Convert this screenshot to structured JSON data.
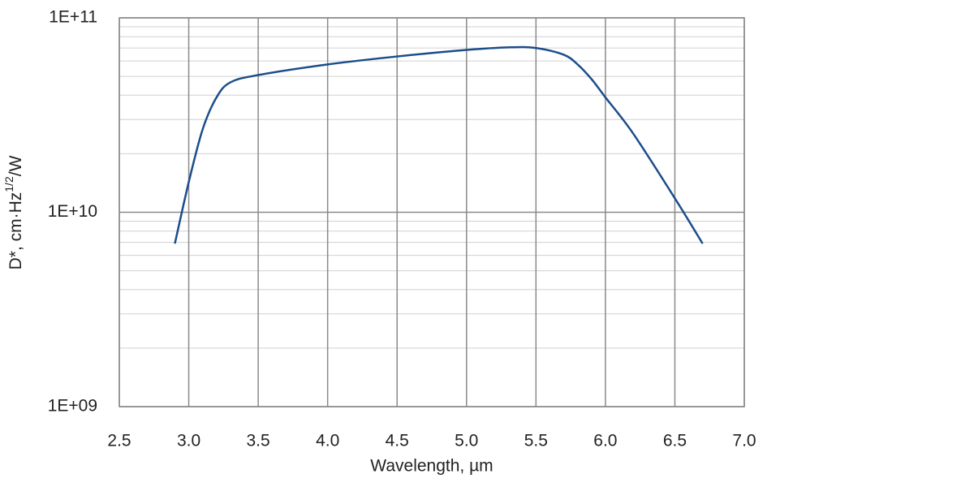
{
  "chart_data": {
    "type": "line",
    "log_y": true,
    "grid": true,
    "xlabel": "Wavelength, µm",
    "ylabel": {
      "text": "D*, cm·Hz",
      "sup": "1/2",
      "tail": "/W"
    },
    "xlim": [
      2.5,
      7.0
    ],
    "xticks": [
      2.5,
      {
        "value": 3,
        "label": "3.0"
      },
      3.5,
      {
        "value": 4,
        "label": "4.0"
      },
      4.5,
      {
        "value": 5,
        "label": "5.0"
      },
      5.5,
      {
        "value": 6,
        "label": "6.0"
      },
      6.5,
      {
        "value": 7,
        "label": "7.0"
      }
    ],
    "ylim": [
      1000000000,
      100000000000
    ],
    "yticks": [
      {
        "value": 1000000000,
        "label": "1E+09"
      },
      {
        "value": 10000000000,
        "label": "1E+10"
      },
      {
        "value": 100000000000,
        "label": "1E+11"
      }
    ],
    "yminor": [
      2000000000,
      3000000000,
      4000000000,
      5000000000,
      6000000000,
      7000000000,
      8000000000,
      9000000000,
      20000000000,
      30000000000,
      40000000000,
      50000000000,
      60000000000,
      70000000000,
      80000000000,
      90000000000
    ],
    "series": [
      {
        "color": "#1b4d8a",
        "x": [
          2.9,
          3.0,
          3.1,
          3.2,
          3.3,
          3.5,
          4.0,
          4.5,
          5.0,
          5.3,
          5.5,
          5.7,
          5.8,
          5.9,
          6.0,
          6.2,
          6.5,
          6.7
        ],
        "values": [
          6900000000,
          14300000000,
          26700000000,
          39000000000,
          46600000000,
          50800000000,
          57600000000,
          63300000000,
          68400000000,
          70500000000,
          70000000000,
          64600000000,
          57600000000,
          48400000000,
          39000000000,
          25400000000,
          11800000000,
          6900000000
        ]
      }
    ]
  }
}
